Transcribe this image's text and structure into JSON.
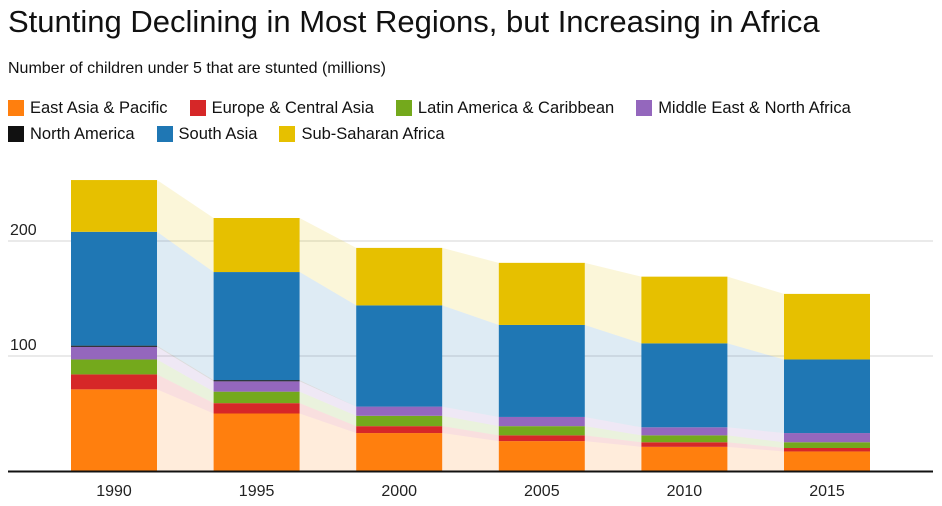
{
  "title": "Stunting Declining in Most Regions, but Increasing in Africa",
  "subtitle": "Number of children under 5 that are stunted (millions)",
  "chart_data": {
    "type": "bar",
    "stacked": true,
    "title": "Stunting Declining in Most Regions, but Increasing in Africa",
    "subtitle": "Number of children under 5 that are stunted (millions)",
    "categories": [
      "1990",
      "1995",
      "2000",
      "2005",
      "2010",
      "2015"
    ],
    "yticks": [
      "100",
      "200"
    ],
    "ylim": [
      0,
      250
    ],
    "grid": true,
    "legend_position": "top",
    "series": [
      {
        "name": "East Asia & Pacific",
        "color": "#ff7f0e",
        "values": [
          71,
          50,
          33,
          26,
          21,
          17
        ]
      },
      {
        "name": "Europe & Central Asia",
        "color": "#d62728",
        "values": [
          13,
          9,
          6,
          5,
          4,
          3
        ]
      },
      {
        "name": "Latin America & Caribbean",
        "color": "#74a91c",
        "values": [
          13,
          10,
          9,
          8,
          6,
          5
        ]
      },
      {
        "name": "Middle East & North Africa",
        "color": "#9467bd",
        "values": [
          11,
          9,
          8,
          8,
          7,
          8
        ]
      },
      {
        "name": "North America",
        "color": "#111111",
        "values": [
          1,
          1,
          0,
          0,
          0,
          0
        ]
      },
      {
        "name": "South Asia",
        "color": "#1f77b4",
        "values": [
          99,
          94,
          88,
          80,
          73,
          64
        ]
      },
      {
        "name": "Sub-Saharan Africa",
        "color": "#e6c000",
        "values": [
          45,
          47,
          50,
          54,
          58,
          57
        ]
      }
    ]
  }
}
